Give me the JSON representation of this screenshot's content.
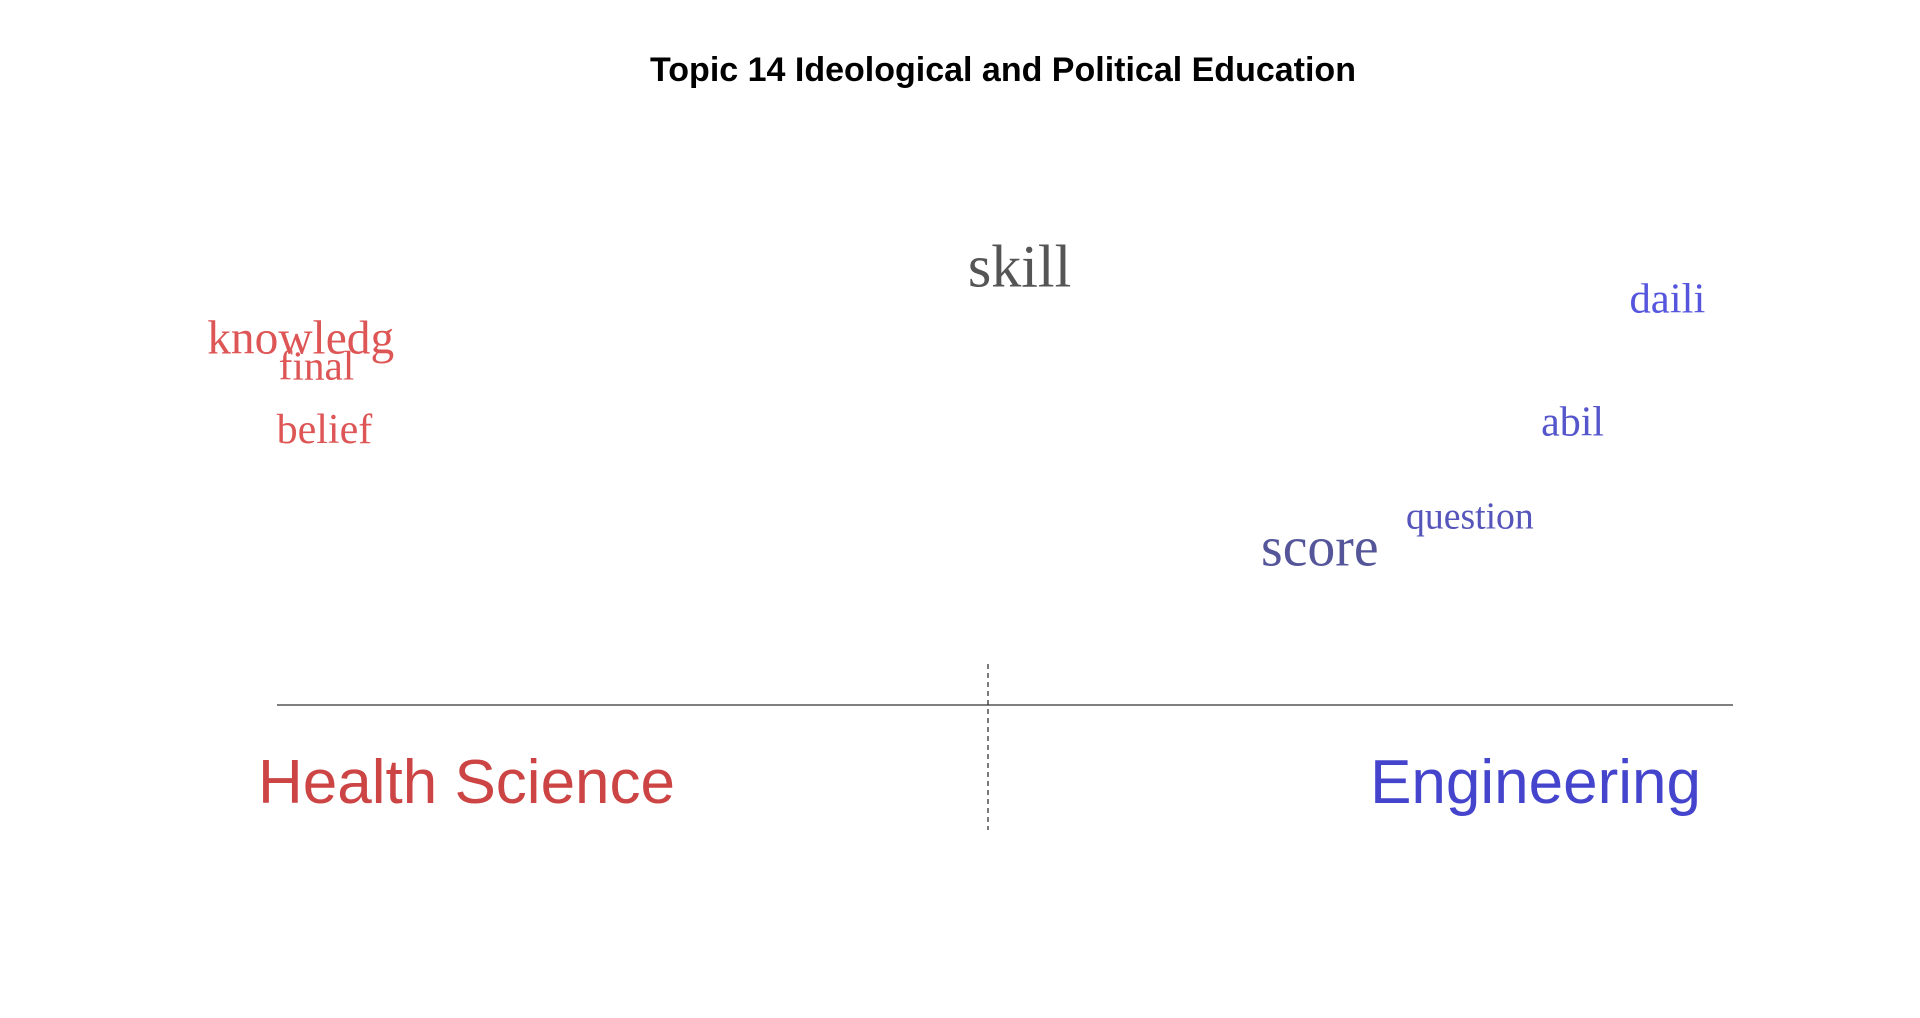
{
  "chart_data": {
    "type": "scatter",
    "title": "Topic 14 Ideological and Political Education",
    "xlabel": "",
    "ylabel": "",
    "grid": false,
    "groups": [
      {
        "label": "Health Science",
        "color": "#cc4444"
      },
      {
        "label": "Engineering",
        "color": "#4444cc"
      }
    ],
    "words": [
      {
        "text": "skill",
        "x": 0.04,
        "y": 0.95,
        "weight": 1.0,
        "color": "#555555"
      },
      {
        "text": "daili",
        "x": 0.86,
        "y": 0.88,
        "weight": 0.52,
        "color": "#5555dd"
      },
      {
        "text": "knowledg",
        "x": -0.87,
        "y": 0.77,
        "weight": 0.65,
        "color": "#dd5555"
      },
      {
        "text": "final",
        "x": -0.85,
        "y": 0.7,
        "weight": 0.48,
        "color": "#dd5555"
      },
      {
        "text": "belief",
        "x": -0.84,
        "y": 0.53,
        "weight": 0.5,
        "color": "#dd5555"
      },
      {
        "text": "abil",
        "x": 0.74,
        "y": 0.55,
        "weight": 0.5,
        "color": "#5555cc"
      },
      {
        "text": "question",
        "x": 0.61,
        "y": 0.3,
        "weight": 0.38,
        "color": "#5555bb"
      },
      {
        "text": "score",
        "x": 0.42,
        "y": 0.2,
        "weight": 0.88,
        "color": "#555599"
      }
    ]
  }
}
